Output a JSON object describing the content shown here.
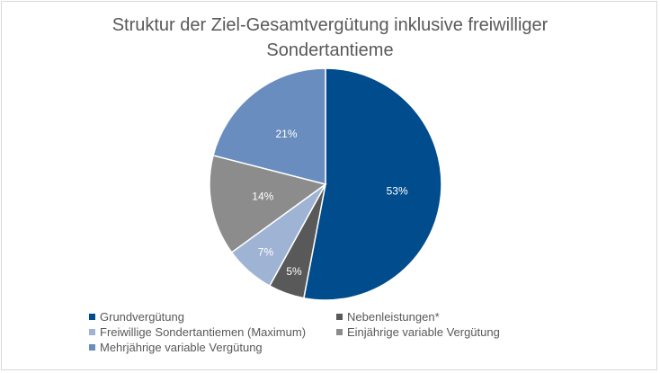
{
  "chart_data": {
    "type": "pie",
    "title_line1": "Struktur der Ziel-Gesamtvergütung inklusive freiwilliger",
    "title_line2": "Sondertantieme",
    "slices": [
      {
        "name": "Grundvergütung",
        "value": 53,
        "label": "53%",
        "color": "#004c8c"
      },
      {
        "name": "Nebenleistungen*",
        "value": 5,
        "label": "5%",
        "color": "#595959"
      },
      {
        "name": "Freiwillige Sondertantiemen (Maximum)",
        "value": 7,
        "label": "7%",
        "color": "#9fb4d5"
      },
      {
        "name": "Einjährige variable Vergütung",
        "value": 14,
        "label": "14%",
        "color": "#8c8c8c"
      },
      {
        "name": "Mehrjährige variable Vergütung",
        "value": 21,
        "label": "21%",
        "color": "#6a8dbf"
      }
    ],
    "start_angle_deg": 0,
    "direction": "clockwise",
    "legend_position": "bottom"
  }
}
